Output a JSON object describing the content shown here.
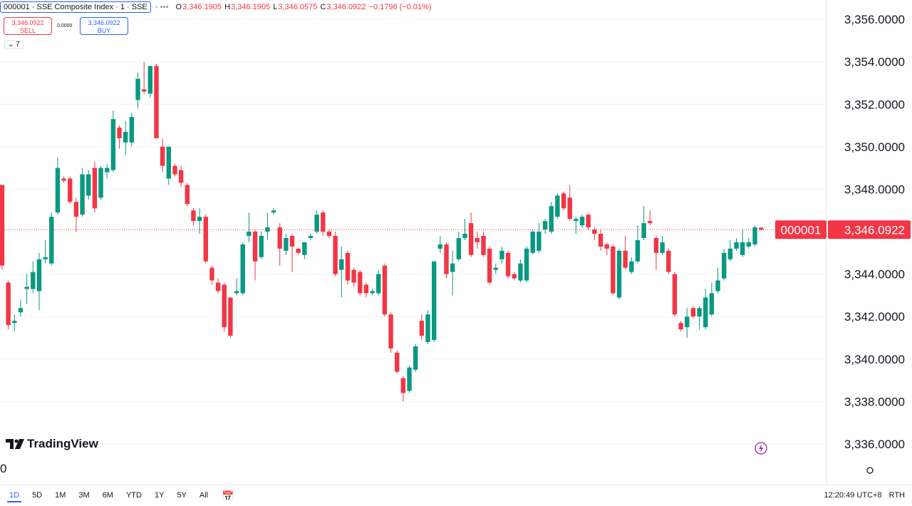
{
  "header": {
    "symbol": "000001 · SSE Composite Index · 1 · SSE",
    "o": "O",
    "o_value": "3,346.1905",
    "h": "H",
    "h_value": "3,346.1905",
    "l": "L",
    "l_value": "3,346.0575",
    "c": "C",
    "c_value": "3,346.0922",
    "change": "−0.1796 (−0.01%)"
  },
  "trade": {
    "sell_price": "3,346.0922",
    "sell": "SELL",
    "spread": "0.0000",
    "buy_price": "3,346.0922",
    "buy": "BUY"
  },
  "indicators": "7",
  "logo": "TradingView",
  "time_label": "0",
  "toolbar": {
    "ranges": [
      "1D",
      "5D",
      "1M",
      "3M",
      "6M",
      "YTD",
      "1Y",
      "5Y",
      "All"
    ],
    "clock": "12:20:49 UTC+8",
    "session": "RTH"
  },
  "chart_data": {
    "type": "candlestick",
    "symbol_tag": "000001",
    "up_color": "#089981",
    "down_color": "#f23645",
    "grid": true,
    "ylim": [
      3335.26,
      3356.91
    ],
    "yticks": [
      {
        "value": 3336,
        "label": "3,336.0000"
      },
      {
        "value": 3338,
        "label": "3,338.0000"
      },
      {
        "value": 3340,
        "label": "3,340.0000"
      },
      {
        "value": 3342,
        "label": "3,342.0000"
      },
      {
        "value": 3344,
        "label": "3,344.0000"
      },
      {
        "value": 3346,
        "label": "3,346.0000"
      },
      {
        "value": 3348,
        "label": "3,348.0000"
      },
      {
        "value": 3350,
        "label": "3,350.0000"
      },
      {
        "value": 3352,
        "label": "3,352.0000"
      },
      {
        "value": 3354,
        "label": "3,354.0000"
      },
      {
        "value": 3356,
        "label": "3,356.0000"
      }
    ],
    "last_price": {
      "value": 3346.0922,
      "label": "3,346.0922"
    },
    "open": [
      3348.2,
      3343.6,
      3341.7,
      3342.2,
      3343.3,
      3343.3,
      3343.2,
      3344.7,
      3344.5,
      3346.9,
      3348.5,
      3348.5,
      3347.4,
      3346.8,
      3347.7,
      3349.0,
      3347.6,
      3348.8,
      3348.9,
      3350.9,
      3350.2,
      3350.2,
      3352.2,
      3352.7,
      3352.5,
      3353.8,
      3350.0,
      3348.5,
      3349.1,
      3348.9,
      3348.2,
      3347.0,
      3346.5,
      3346.7,
      3344.3,
      3343.6,
      3343.5,
      3342.9,
      3343.1,
      3343.1,
      3345.8,
      3346.0,
      3344.8,
      3346.0,
      3346.9,
      3346.2,
      3345.1,
      3345.8,
      3345.2,
      3344.9,
      3345.7,
      3346.0,
      3346.9,
      3346.0,
      3345.8,
      3344.2,
      3345.0,
      3344.2,
      3344.1,
      3343.5,
      3343.1,
      3343.1,
      3344.4,
      3342.1,
      3340.3,
      3339.1,
      3338.5,
      3339.5,
      3341.8,
      3340.8,
      3340.9,
      3345.2,
      3345.4,
      3344.1,
      3344.7,
      3345.7,
      3346.4,
      3345.7,
      3345.8,
      3345.2,
      3344.2,
      3344.7,
      3345.0,
      3344.0,
      3343.7,
      3343.7,
      3345.0,
      3345.1,
      3346.1,
      3346.0,
      3346.7,
      3347.8,
      3347.6,
      3346.5,
      3346.3,
      3346.8,
      3346.1,
      3345.9,
      3345.4,
      3345.3,
      3342.9,
      3345.1,
      3344.1,
      3344.6,
      3345.7,
      3346.5,
      3345.7,
      3345.0,
      3345.1,
      3344.0,
      3341.7,
      3341.5,
      3342.4,
      3342.0,
      3341.5,
      3342.1,
      3343.2,
      3343.8,
      3344.7,
      3345.2,
      3344.9,
      3345.3,
      3345.4,
      3346.1905
    ],
    "close": [
      3344.4,
      3341.6,
      3341.8,
      3342.4,
      3343.4,
      3344.1,
      3344.7,
      3344.8,
      3346.7,
      3349.0,
      3348.4,
      3347.4,
      3346.7,
      3348.7,
      3348.7,
      3347.1,
      3349.0,
      3349.0,
      3351.3,
      3350.4,
      3350.7,
      3351.4,
      3353.2,
      3352.6,
      3353.8,
      3350.4,
      3349.1,
      3350.0,
      3348.7,
      3348.3,
      3347.3,
      3346.5,
      3346.7,
      3344.6,
      3343.7,
      3343.2,
      3341.5,
      3341.1,
      3343.2,
      3345.4,
      3346.0,
      3344.6,
      3345.8,
      3346.2,
      3347.0,
      3345.2,
      3345.7,
      3345.3,
      3345.0,
      3345.5,
      3345.8,
      3346.8,
      3346.0,
      3345.8,
      3344.0,
      3344.7,
      3343.7,
      3343.6,
      3343.1,
      3343.1,
      3343.2,
      3344.0,
      3342.1,
      3340.5,
      3339.4,
      3338.4,
      3339.6,
      3340.6,
      3341.1,
      3342.1,
      3344.6,
      3345.4,
      3344.0,
      3344.5,
      3345.7,
      3345.9,
      3344.9,
      3345.5,
      3344.9,
      3343.6,
      3344.3,
      3345.1,
      3343.9,
      3343.8,
      3344.5,
      3345.2,
      3346.0,
      3346.0,
      3346.5,
      3347.2,
      3347.7,
      3347.1,
      3346.6,
      3346.6,
      3346.7,
      3346.2,
      3345.9,
      3345.3,
      3345.2,
      3343.1,
      3345.1,
      3344.3,
      3344.6,
      3345.6,
      3346.4,
      3346.4,
      3345.0,
      3345.5,
      3344.1,
      3342.1,
      3341.4,
      3342.0,
      3342.0,
      3342.4,
      3342.9,
      3343.1,
      3343.7,
      3345.0,
      3345.2,
      3345.5,
      3345.5,
      3345.5,
      3346.2,
      3346.0922
    ],
    "high": [
      3348.2,
      3343.7,
      3342.1,
      3342.8,
      3344.0,
      3344.6,
      3345.0,
      3345.6,
      3346.9,
      3349.5,
      3348.6,
      3348.6,
      3347.6,
      3349.0,
      3348.9,
      3349.3,
      3349.1,
      3349.2,
      3351.7,
      3351.0,
      3351.2,
      3351.6,
      3353.5,
      3354.0,
      3353.8,
      3353.9,
      3350.4,
      3350.0,
      3349.2,
      3349.1,
      3348.3,
      3347.1,
      3347.1,
      3346.8,
      3344.4,
      3343.8,
      3343.6,
      3342.9,
      3343.8,
      3345.5,
      3346.9,
      3346.1,
      3346.0,
      3346.9,
      3347.1,
      3346.4,
      3345.9,
      3345.9,
      3345.2,
      3345.5,
      3345.9,
      3347.0,
      3347.0,
      3346.1,
      3346.0,
      3345.3,
      3345.1,
      3344.3,
      3344.2,
      3343.6,
      3343.3,
      3344.2,
      3344.5,
      3342.2,
      3340.4,
      3339.2,
      3339.7,
      3340.7,
      3342.1,
      3342.3,
      3344.6,
      3345.8,
      3345.5,
      3345.1,
      3346.0,
      3346.6,
      3346.9,
      3346.0,
      3346.0,
      3345.3,
      3344.5,
      3345.3,
      3345.1,
      3344.1,
      3344.7,
      3345.3,
      3346.1,
      3346.4,
      3346.6,
      3347.4,
      3347.8,
      3347.9,
      3348.2,
      3346.7,
      3346.8,
      3346.9,
      3346.2,
      3346.1,
      3345.5,
      3345.4,
      3345.2,
      3345.8,
      3344.8,
      3346.3,
      3347.2,
      3347.0,
      3345.8,
      3345.8,
      3345.2,
      3344.1,
      3341.8,
      3342.4,
      3342.5,
      3342.5,
      3343.3,
      3343.6,
      3344.3,
      3345.2,
      3345.6,
      3345.7,
      3346.1,
      3345.7,
      3346.3,
      3346.1905
    ],
    "low": [
      3344.2,
      3341.4,
      3341.3,
      3342.0,
      3342.6,
      3343.1,
      3342.3,
      3344.5,
      3344.4,
      3346.8,
      3348.3,
      3347.3,
      3346.0,
      3346.7,
      3347.5,
      3346.9,
      3347.5,
      3348.5,
      3348.8,
      3349.9,
      3349.6,
      3350.0,
      3351.8,
      3352.5,
      3352.3,
      3350.4,
      3348.8,
      3348.2,
      3348.6,
      3348.1,
      3347.2,
      3346.3,
      3345.9,
      3344.5,
      3343.5,
      3343.1,
      3341.3,
      3341.0,
      3343.0,
      3343.0,
      3345.5,
      3343.7,
      3344.7,
      3345.6,
      3346.8,
      3344.4,
      3344.9,
      3344.1,
      3344.9,
      3344.7,
      3345.6,
      3345.9,
      3345.8,
      3345.7,
      3343.9,
      3342.9,
      3343.5,
      3343.4,
      3343.0,
      3342.9,
      3343.0,
      3343.0,
      3342.0,
      3340.3,
      3339.3,
      3338.0,
      3338.4,
      3339.4,
      3340.9,
      3340.7,
      3340.8,
      3345.0,
      3343.8,
      3343.0,
      3344.6,
      3345.6,
      3344.8,
      3345.2,
      3344.8,
      3343.5,
      3344.0,
      3344.5,
      3343.8,
      3343.7,
      3343.6,
      3343.6,
      3344.9,
      3345.0,
      3345.9,
      3345.9,
      3346.6,
      3347.0,
      3346.5,
      3345.9,
      3346.2,
      3346.1,
      3345.6,
      3345.1,
      3344.9,
      3343.0,
      3342.8,
      3344.2,
      3344.0,
      3344.5,
      3345.6,
      3346.3,
      3344.2,
      3344.9,
      3344.0,
      3342.0,
      3341.3,
      3341.0,
      3341.9,
      3341.4,
      3341.4,
      3342.0,
      3343.1,
      3343.7,
      3344.6,
      3345.1,
      3344.8,
      3345.2,
      3345.3,
      3346.0575
    ]
  }
}
